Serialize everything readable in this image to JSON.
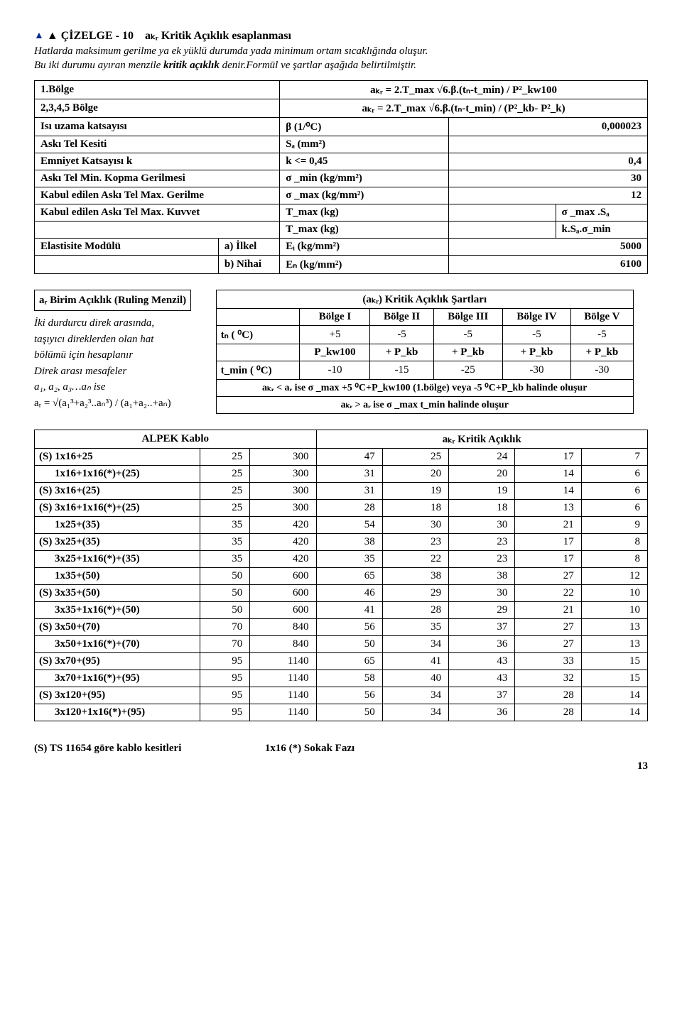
{
  "title": {
    "prefix": "▲ ÇİZELGE - 10",
    "suffix": "aₖᵣ Kritik Açıklık esaplanması"
  },
  "intro": {
    "line1_a": "Hatlarda maksimum gerilme ya ek yüklü durumda yada minimum ortam sıcaklığında oluşur.",
    "line2_a": "Bu iki durumu ayıran menzile ",
    "line2_b": "kritik açıklık",
    "line2_c": " denir.Formül ve şartlar aşağıda belirtilmiştir."
  },
  "t1": {
    "r1c1": "1.Bölge",
    "r1c2": "aₖᵣ = 2.T_max √6.β.(tₙ-t_min) / P²_kw100",
    "r2c1": "2,3,4,5 Bölge",
    "r2c2": "aₖᵣ = 2.T_max √6.β.(tₙ-t_min) / (P²_kb- P²_k)",
    "r3a": "Isı uzama katsayısı",
    "r3b": "β (1/⁰C)",
    "r3c": "0,000023",
    "r4a": "Askı Tel Kesiti",
    "r4b": "Sₐ (mm²)",
    "r5a": "Emniyet Katsayısı k",
    "r5b": "k <= 0,45",
    "r5c": "0,4",
    "r6a": "Askı Tel Min. Kopma Gerilmesi",
    "r6b": "σ _min (kg/mm²)",
    "r6c": "30",
    "r7a": "Kabul edilen Askı Tel Max. Gerilme",
    "r7b": "σ _max (kg/mm²)",
    "r7c": "12",
    "r8a": "Kabul edilen Askı Tel Max. Kuvvet",
    "r8b": "T_max (kg)",
    "r8d": "σ _max .Sₐ",
    "r9b": "T_max (kg)",
    "r9d": "k.Sₐ.σ_min",
    "r10a": "Elastisite Modülü",
    "r10a2": "a) İlkel",
    "r10b": "Eᵢ (kg/mm²)",
    "r10c": "5000",
    "r11a2": "b) Nihai",
    "r11b": "Eₙ (kg/mm²)",
    "r11c": "6100"
  },
  "left": {
    "hdr": "aᵣ Birim Açıklık (Ruling Menzil)",
    "l1": "İki durdurcu direk arasında,",
    "l2": "taşıyıcı direklerden olan  hat",
    "l3": "bölümü için hesaplanır",
    "l4": "Direk arası mesafeler",
    "l5": "a₁, a₂, a₃…aₙ ise",
    "l6": "aᵣ = √(a₁³+a₂³..aₙ³) / (a₁+a₂..+aₙ)"
  },
  "t2": {
    "title": "(aₖᵣ) Kritik Açıklık Şartları",
    "cols": [
      "Bölge I",
      "Bölge II",
      "Bölge III",
      "Bölge IV",
      "Bölge V"
    ],
    "row_tn": {
      "h": "tₙ ( ⁰C)",
      "v": [
        "+5",
        "-5",
        "-5",
        "-5",
        "-5"
      ]
    },
    "row_p": {
      "h": "",
      "v": [
        "P_kw100",
        "+ P_kb",
        "+ P_kb",
        "+ P_kb",
        "+ P_kb"
      ]
    },
    "row_tm": {
      "h": "t_min ( ⁰C)",
      "v": [
        "-10",
        "-15",
        "-25",
        "-30",
        "-30"
      ]
    },
    "wide1": "aₖᵣ < aᵣ ise σ _max  +5 ⁰C+P_kw100 (1.bölge) veya -5 ⁰C+P_kb halinde oluşur",
    "wide2": "aₖᵣ > aᵣ ise σ _max   t_min  halinde oluşur"
  },
  "t3": {
    "h1": "ALPEK Kablo",
    "h2": "aₖᵣ Kritik Açıklık",
    "rows": [
      {
        "n": "(S) 1x16+25",
        "v": [
          25,
          300,
          47,
          25,
          24,
          17,
          7
        ]
      },
      {
        "n": "1x16+1x16(*)+(25)",
        "v": [
          25,
          300,
          31,
          20,
          20,
          14,
          6
        ]
      },
      {
        "n": "(S) 3x16+(25)",
        "v": [
          25,
          300,
          31,
          19,
          19,
          14,
          6
        ]
      },
      {
        "n": "(S) 3x16+1x16(*)+(25)",
        "v": [
          25,
          300,
          28,
          18,
          18,
          13,
          6
        ]
      },
      {
        "n": "1x25+(35)",
        "v": [
          35,
          420,
          54,
          30,
          30,
          21,
          9
        ]
      },
      {
        "n": "(S) 3x25+(35)",
        "v": [
          35,
          420,
          38,
          23,
          23,
          17,
          8
        ]
      },
      {
        "n": "3x25+1x16(*)+(35)",
        "v": [
          35,
          420,
          35,
          22,
          23,
          17,
          8
        ]
      },
      {
        "n": "1x35+(50)",
        "v": [
          50,
          600,
          65,
          38,
          38,
          27,
          12
        ]
      },
      {
        "n": "(S) 3x35+(50)",
        "v": [
          50,
          600,
          46,
          29,
          30,
          22,
          10
        ]
      },
      {
        "n": "3x35+1x16(*)+(50)",
        "v": [
          50,
          600,
          41,
          28,
          29,
          21,
          10
        ]
      },
      {
        "n": "(S) 3x50+(70)",
        "v": [
          70,
          840,
          56,
          35,
          37,
          27,
          13
        ]
      },
      {
        "n": "3x50+1x16(*)+(70)",
        "v": [
          70,
          840,
          50,
          34,
          36,
          27,
          13
        ]
      },
      {
        "n": "(S) 3x70+(95)",
        "v": [
          95,
          1140,
          65,
          41,
          43,
          33,
          15
        ]
      },
      {
        "n": "3x70+1x16(*)+(95)",
        "v": [
          95,
          1140,
          58,
          40,
          43,
          32,
          15
        ]
      },
      {
        "n": "(S) 3x120+(95)",
        "v": [
          95,
          1140,
          56,
          34,
          37,
          28,
          14
        ]
      },
      {
        "n": "3x120+1x16(*)+(95)",
        "v": [
          95,
          1140,
          50,
          34,
          36,
          28,
          14
        ]
      }
    ]
  },
  "foot": {
    "left": "(S) TS 11654 göre kablo kesitleri",
    "right": "1x16 (*) Sokak Fazı",
    "page": "13"
  }
}
